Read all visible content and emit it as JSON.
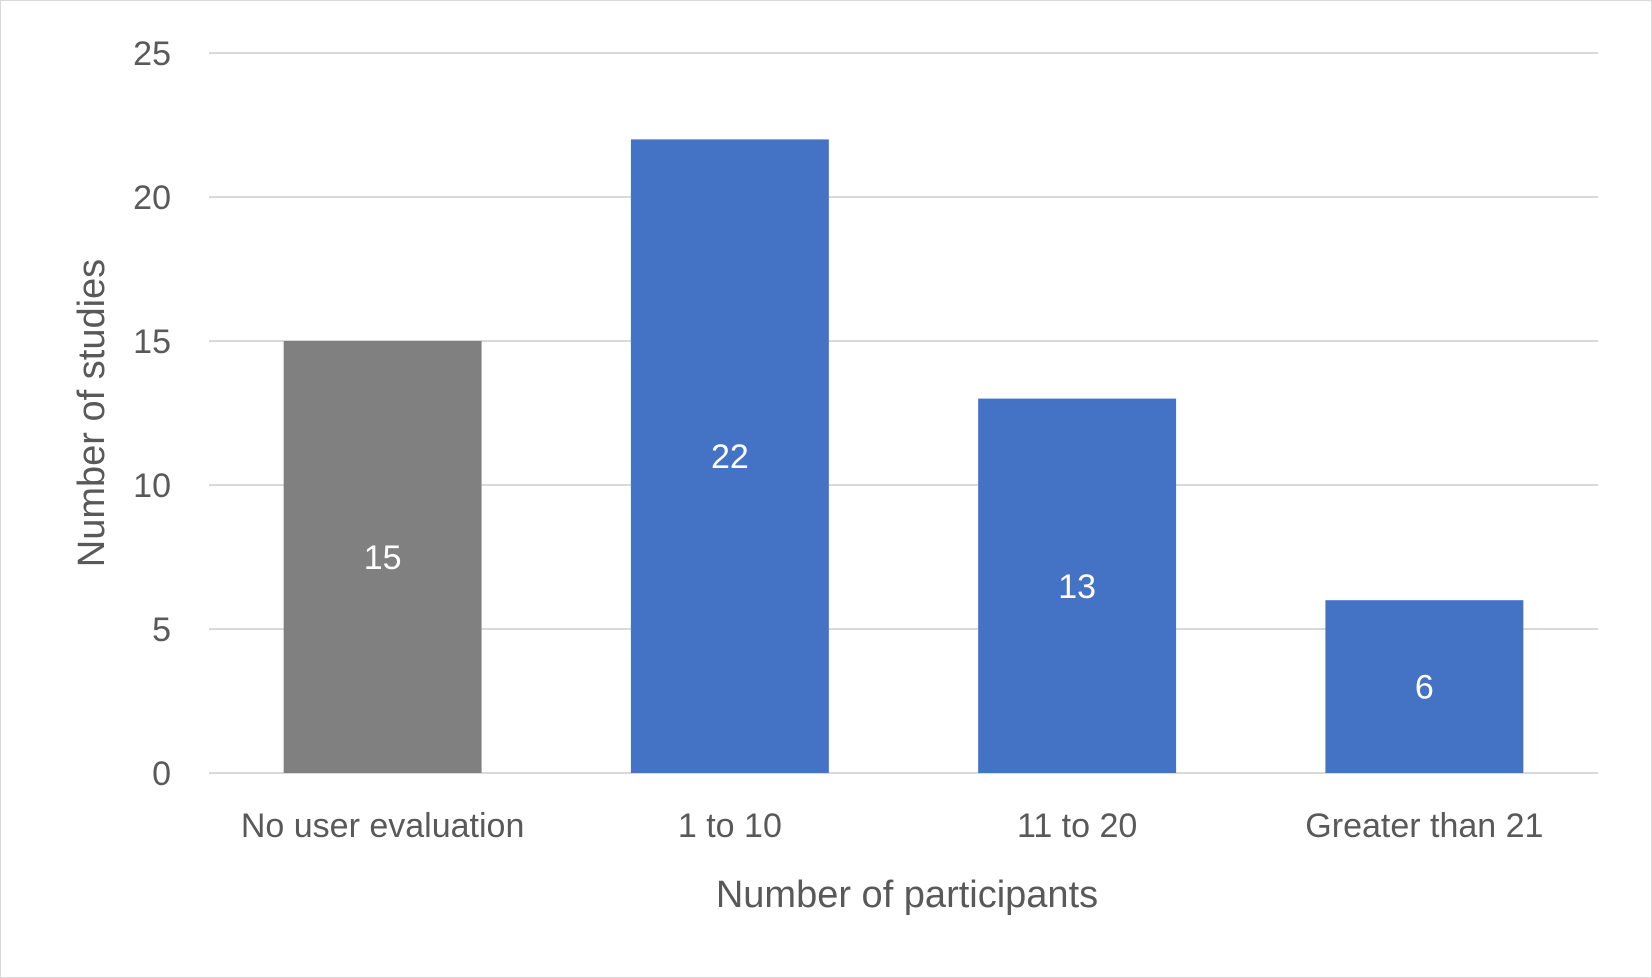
{
  "chart_data": {
    "type": "bar",
    "title": "",
    "categories": [
      "No user evaluation",
      "1 to 10",
      "11 to 20",
      "Greater than 21"
    ],
    "values": [
      15,
      22,
      13,
      6
    ],
    "data_labels": [
      "15",
      "22",
      "13",
      "6"
    ],
    "xlabel": "Number of participants",
    "ylabel": "Number of studies",
    "ylim": [
      0,
      25
    ],
    "yticks": [
      0,
      5,
      10,
      15,
      20,
      25
    ],
    "ytick_labels": [
      "0",
      "5",
      "10",
      "15",
      "20",
      "25"
    ],
    "grid": true,
    "legend": "none",
    "colors": {
      "bars": [
        "#808080",
        "#4472c4",
        "#4472c4",
        "#4472c4"
      ],
      "grid": "#d9d9d9",
      "text": "#595959",
      "data_label": "#ffffff"
    }
  }
}
